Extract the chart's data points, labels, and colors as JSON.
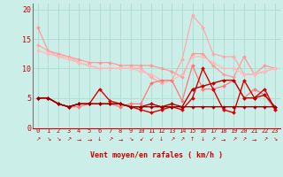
{
  "xlabel": "Vent moyen/en rafales ( km/h )",
  "hours": [
    0,
    1,
    2,
    3,
    4,
    5,
    6,
    7,
    8,
    9,
    10,
    11,
    12,
    13,
    14,
    15,
    16,
    17,
    18,
    19,
    20,
    21,
    22,
    23
  ],
  "background_color": "#cceee8",
  "grid_color": "#aaddcc",
  "series": [
    {
      "name": "light1",
      "color": "#ff9999",
      "lw": 0.9,
      "marker": "D",
      "markersize": 2.0,
      "values": [
        17,
        13,
        12.5,
        12,
        11.5,
        11,
        11,
        11,
        10.5,
        10.5,
        10.5,
        10.5,
        10,
        9.5,
        8.5,
        12.5,
        12.5,
        10.5,
        9,
        8.5,
        12,
        9,
        10.5,
        10
      ]
    },
    {
      "name": "light2",
      "color": "#ffaaaa",
      "lw": 0.9,
      "marker": "D",
      "markersize": 2.0,
      "values": [
        14,
        13,
        12,
        12,
        11,
        10.5,
        10,
        10,
        10,
        10,
        10,
        8.5,
        7.5,
        8,
        11.5,
        19,
        17,
        12.5,
        12,
        12,
        9,
        9,
        9.5,
        10
      ]
    },
    {
      "name": "light3",
      "color": "#ffbbbb",
      "lw": 0.9,
      "marker": "D",
      "markersize": 2.0,
      "values": [
        13,
        12.5,
        12,
        11.5,
        11,
        10.5,
        10,
        10,
        10,
        10,
        9.5,
        9,
        8,
        8,
        9,
        12,
        12,
        11,
        10,
        10,
        9,
        9,
        9.5,
        10
      ]
    },
    {
      "name": "medium",
      "color": "#ff7777",
      "lw": 0.9,
      "marker": "D",
      "markersize": 2.0,
      "values": [
        5,
        5,
        4,
        3.5,
        3.5,
        4,
        4,
        4,
        3.5,
        4,
        4,
        7.5,
        8,
        8,
        4.5,
        10.5,
        6.5,
        6.5,
        7,
        8,
        5,
        6.5,
        5.5,
        3
      ]
    },
    {
      "name": "dark1",
      "color": "#dd0000",
      "lw": 1.0,
      "marker": "D",
      "markersize": 2.0,
      "values": [
        5,
        5,
        4,
        3.5,
        4,
        4,
        6.5,
        4.5,
        4,
        3.5,
        3,
        2.5,
        3,
        3.5,
        3,
        5,
        10,
        6.5,
        3,
        2.5,
        8,
        5,
        6.5,
        3
      ]
    },
    {
      "name": "dark2",
      "color": "#bb0000",
      "lw": 1.0,
      "marker": "D",
      "markersize": 2.0,
      "values": [
        5,
        5,
        4,
        3.5,
        4,
        4,
        4,
        4,
        4,
        3.5,
        3.5,
        4,
        3.5,
        4,
        3.5,
        6.5,
        7,
        7.5,
        8,
        8,
        5,
        5,
        5.5,
        3.5
      ]
    },
    {
      "name": "darkest",
      "color": "#990000",
      "lw": 1.0,
      "marker": "D",
      "markersize": 1.8,
      "values": [
        5,
        5,
        4,
        3.5,
        4,
        4,
        4,
        4,
        4,
        3.5,
        3.5,
        3.5,
        3.5,
        3.5,
        3.5,
        3.5,
        3.5,
        3.5,
        3.5,
        3.5,
        3.5,
        3.5,
        3.5,
        3.5
      ]
    }
  ],
  "ylim": [
    0,
    21
  ],
  "yticks": [
    0,
    5,
    10,
    15,
    20
  ],
  "wind_arrows": [
    "↗",
    "↘",
    "↘",
    "↗",
    "→",
    "→",
    "↓",
    "↗",
    "→",
    "↘",
    "↙",
    "↙",
    "↓",
    "↗",
    "↗",
    "↑",
    "↓",
    "↗",
    "→",
    "↗",
    "↗",
    "→",
    "↗",
    "↘"
  ]
}
